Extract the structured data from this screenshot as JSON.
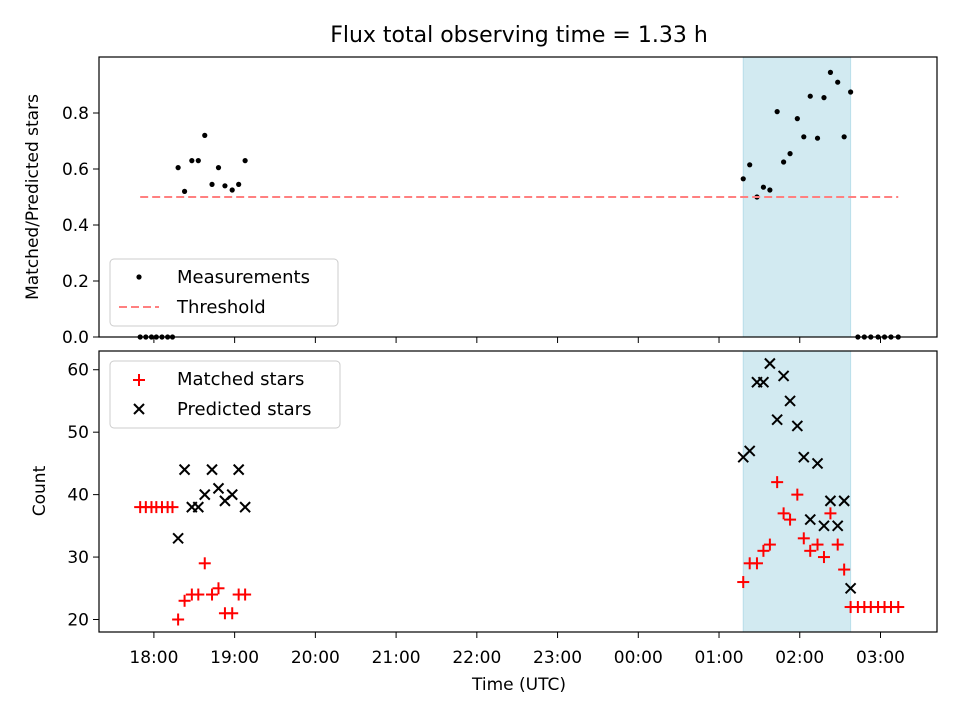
{
  "chart_data": {
    "title": "Flux total observing time = 1.33 h",
    "xlabel": "Time (UTC)",
    "x_tick_labels": [
      "18:00",
      "19:00",
      "20:00",
      "21:00",
      "22:00",
      "23:00",
      "00:00",
      "01:00",
      "02:00",
      "03:00"
    ],
    "x_tick_hours": [
      18,
      19,
      20,
      21,
      22,
      23,
      24,
      25,
      26,
      27
    ],
    "xlim_hours": [
      17.32,
      27.7
    ],
    "shaded_interval_hours": [
      25.3,
      26.63
    ],
    "shade_color": "#add8e6",
    "panels": [
      {
        "type": "scatter",
        "ylabel": "Matched/Predicted stars",
        "ylim": [
          0,
          1.0
        ],
        "y_ticks": [
          0.0,
          0.2,
          0.4,
          0.6,
          0.8
        ],
        "y_tick_labels": [
          "0.0",
          "0.2",
          "0.4",
          "0.6",
          "0.8"
        ],
        "legend_position": "lower-left",
        "series": [
          {
            "name": "Measurements",
            "marker": "dot",
            "color": "#000000",
            "points": [
              [
                17.83,
                0.0
              ],
              [
                17.9,
                0.0
              ],
              [
                17.97,
                0.0
              ],
              [
                18.03,
                0.0
              ],
              [
                18.1,
                0.0
              ],
              [
                18.17,
                0.0
              ],
              [
                18.23,
                0.0
              ],
              [
                18.3,
                0.605
              ],
              [
                18.38,
                0.52
              ],
              [
                18.47,
                0.63
              ],
              [
                18.55,
                0.63
              ],
              [
                18.63,
                0.72
              ],
              [
                18.72,
                0.545
              ],
              [
                18.8,
                0.605
              ],
              [
                18.88,
                0.54
              ],
              [
                18.97,
                0.525
              ],
              [
                19.05,
                0.545
              ],
              [
                19.13,
                0.63
              ],
              [
                25.3,
                0.565
              ],
              [
                25.38,
                0.615
              ],
              [
                25.47,
                0.5
              ],
              [
                25.55,
                0.535
              ],
              [
                25.63,
                0.525
              ],
              [
                25.72,
                0.805
              ],
              [
                25.8,
                0.625
              ],
              [
                25.88,
                0.655
              ],
              [
                25.97,
                0.78
              ],
              [
                26.05,
                0.715
              ],
              [
                26.13,
                0.86
              ],
              [
                26.22,
                0.71
              ],
              [
                26.3,
                0.855
              ],
              [
                26.38,
                0.945
              ],
              [
                26.47,
                0.91
              ],
              [
                26.55,
                0.715
              ],
              [
                26.63,
                0.875
              ],
              [
                26.72,
                0.0
              ],
              [
                26.8,
                0.0
              ],
              [
                26.88,
                0.0
              ],
              [
                26.97,
                0.0
              ],
              [
                27.05,
                0.0
              ],
              [
                27.13,
                0.0
              ],
              [
                27.22,
                0.0
              ]
            ]
          },
          {
            "name": "Threshold",
            "marker": "dashed-line",
            "color": "#ff8080",
            "points": [
              [
                17.83,
                0.5
              ],
              [
                27.22,
                0.5
              ]
            ]
          }
        ]
      },
      {
        "type": "scatter",
        "ylabel": "Count",
        "ylim": [
          18,
          63
        ],
        "y_ticks": [
          20,
          30,
          40,
          50,
          60
        ],
        "y_tick_labels": [
          "20",
          "30",
          "40",
          "50",
          "60"
        ],
        "legend_position": "upper-left",
        "series": [
          {
            "name": "Matched stars",
            "marker": "plus",
            "color": "#ff0000",
            "points": [
              [
                17.83,
                38
              ],
              [
                17.9,
                38
              ],
              [
                17.97,
                38
              ],
              [
                18.03,
                38
              ],
              [
                18.1,
                38
              ],
              [
                18.17,
                38
              ],
              [
                18.23,
                38
              ],
              [
                18.3,
                20
              ],
              [
                18.38,
                23
              ],
              [
                18.47,
                24
              ],
              [
                18.55,
                24
              ],
              [
                18.63,
                29
              ],
              [
                18.72,
                24
              ],
              [
                18.8,
                25
              ],
              [
                18.88,
                21
              ],
              [
                18.97,
                21
              ],
              [
                19.05,
                24
              ],
              [
                19.13,
                24
              ],
              [
                25.3,
                26
              ],
              [
                25.38,
                29
              ],
              [
                25.47,
                29
              ],
              [
                25.55,
                31
              ],
              [
                25.63,
                32
              ],
              [
                25.72,
                42
              ],
              [
                25.8,
                37
              ],
              [
                25.88,
                36
              ],
              [
                25.97,
                40
              ],
              [
                26.05,
                33
              ],
              [
                26.13,
                31
              ],
              [
                26.22,
                32
              ],
              [
                26.3,
                30
              ],
              [
                26.38,
                37
              ],
              [
                26.47,
                32
              ],
              [
                26.55,
                28
              ],
              [
                26.63,
                22
              ],
              [
                26.72,
                22
              ],
              [
                26.8,
                22
              ],
              [
                26.88,
                22
              ],
              [
                26.97,
                22
              ],
              [
                27.05,
                22
              ],
              [
                27.13,
                22
              ],
              [
                27.22,
                22
              ]
            ]
          },
          {
            "name": "Predicted stars",
            "marker": "x",
            "color": "#000000",
            "points": [
              [
                18.3,
                33
              ],
              [
                18.38,
                44
              ],
              [
                18.47,
                38
              ],
              [
                18.55,
                38
              ],
              [
                18.63,
                40
              ],
              [
                18.72,
                44
              ],
              [
                18.8,
                41
              ],
              [
                18.88,
                39
              ],
              [
                18.97,
                40
              ],
              [
                19.05,
                44
              ],
              [
                19.13,
                38
              ],
              [
                25.3,
                46
              ],
              [
                25.38,
                47
              ],
              [
                25.47,
                58
              ],
              [
                25.55,
                58
              ],
              [
                25.63,
                61
              ],
              [
                25.72,
                52
              ],
              [
                25.8,
                59
              ],
              [
                25.88,
                55
              ],
              [
                25.97,
                51
              ],
              [
                26.05,
                46
              ],
              [
                26.13,
                36
              ],
              [
                26.22,
                45
              ],
              [
                26.3,
                35
              ],
              [
                26.38,
                39
              ],
              [
                26.47,
                35
              ],
              [
                26.55,
                39
              ],
              [
                26.63,
                25
              ]
            ]
          }
        ]
      }
    ]
  }
}
